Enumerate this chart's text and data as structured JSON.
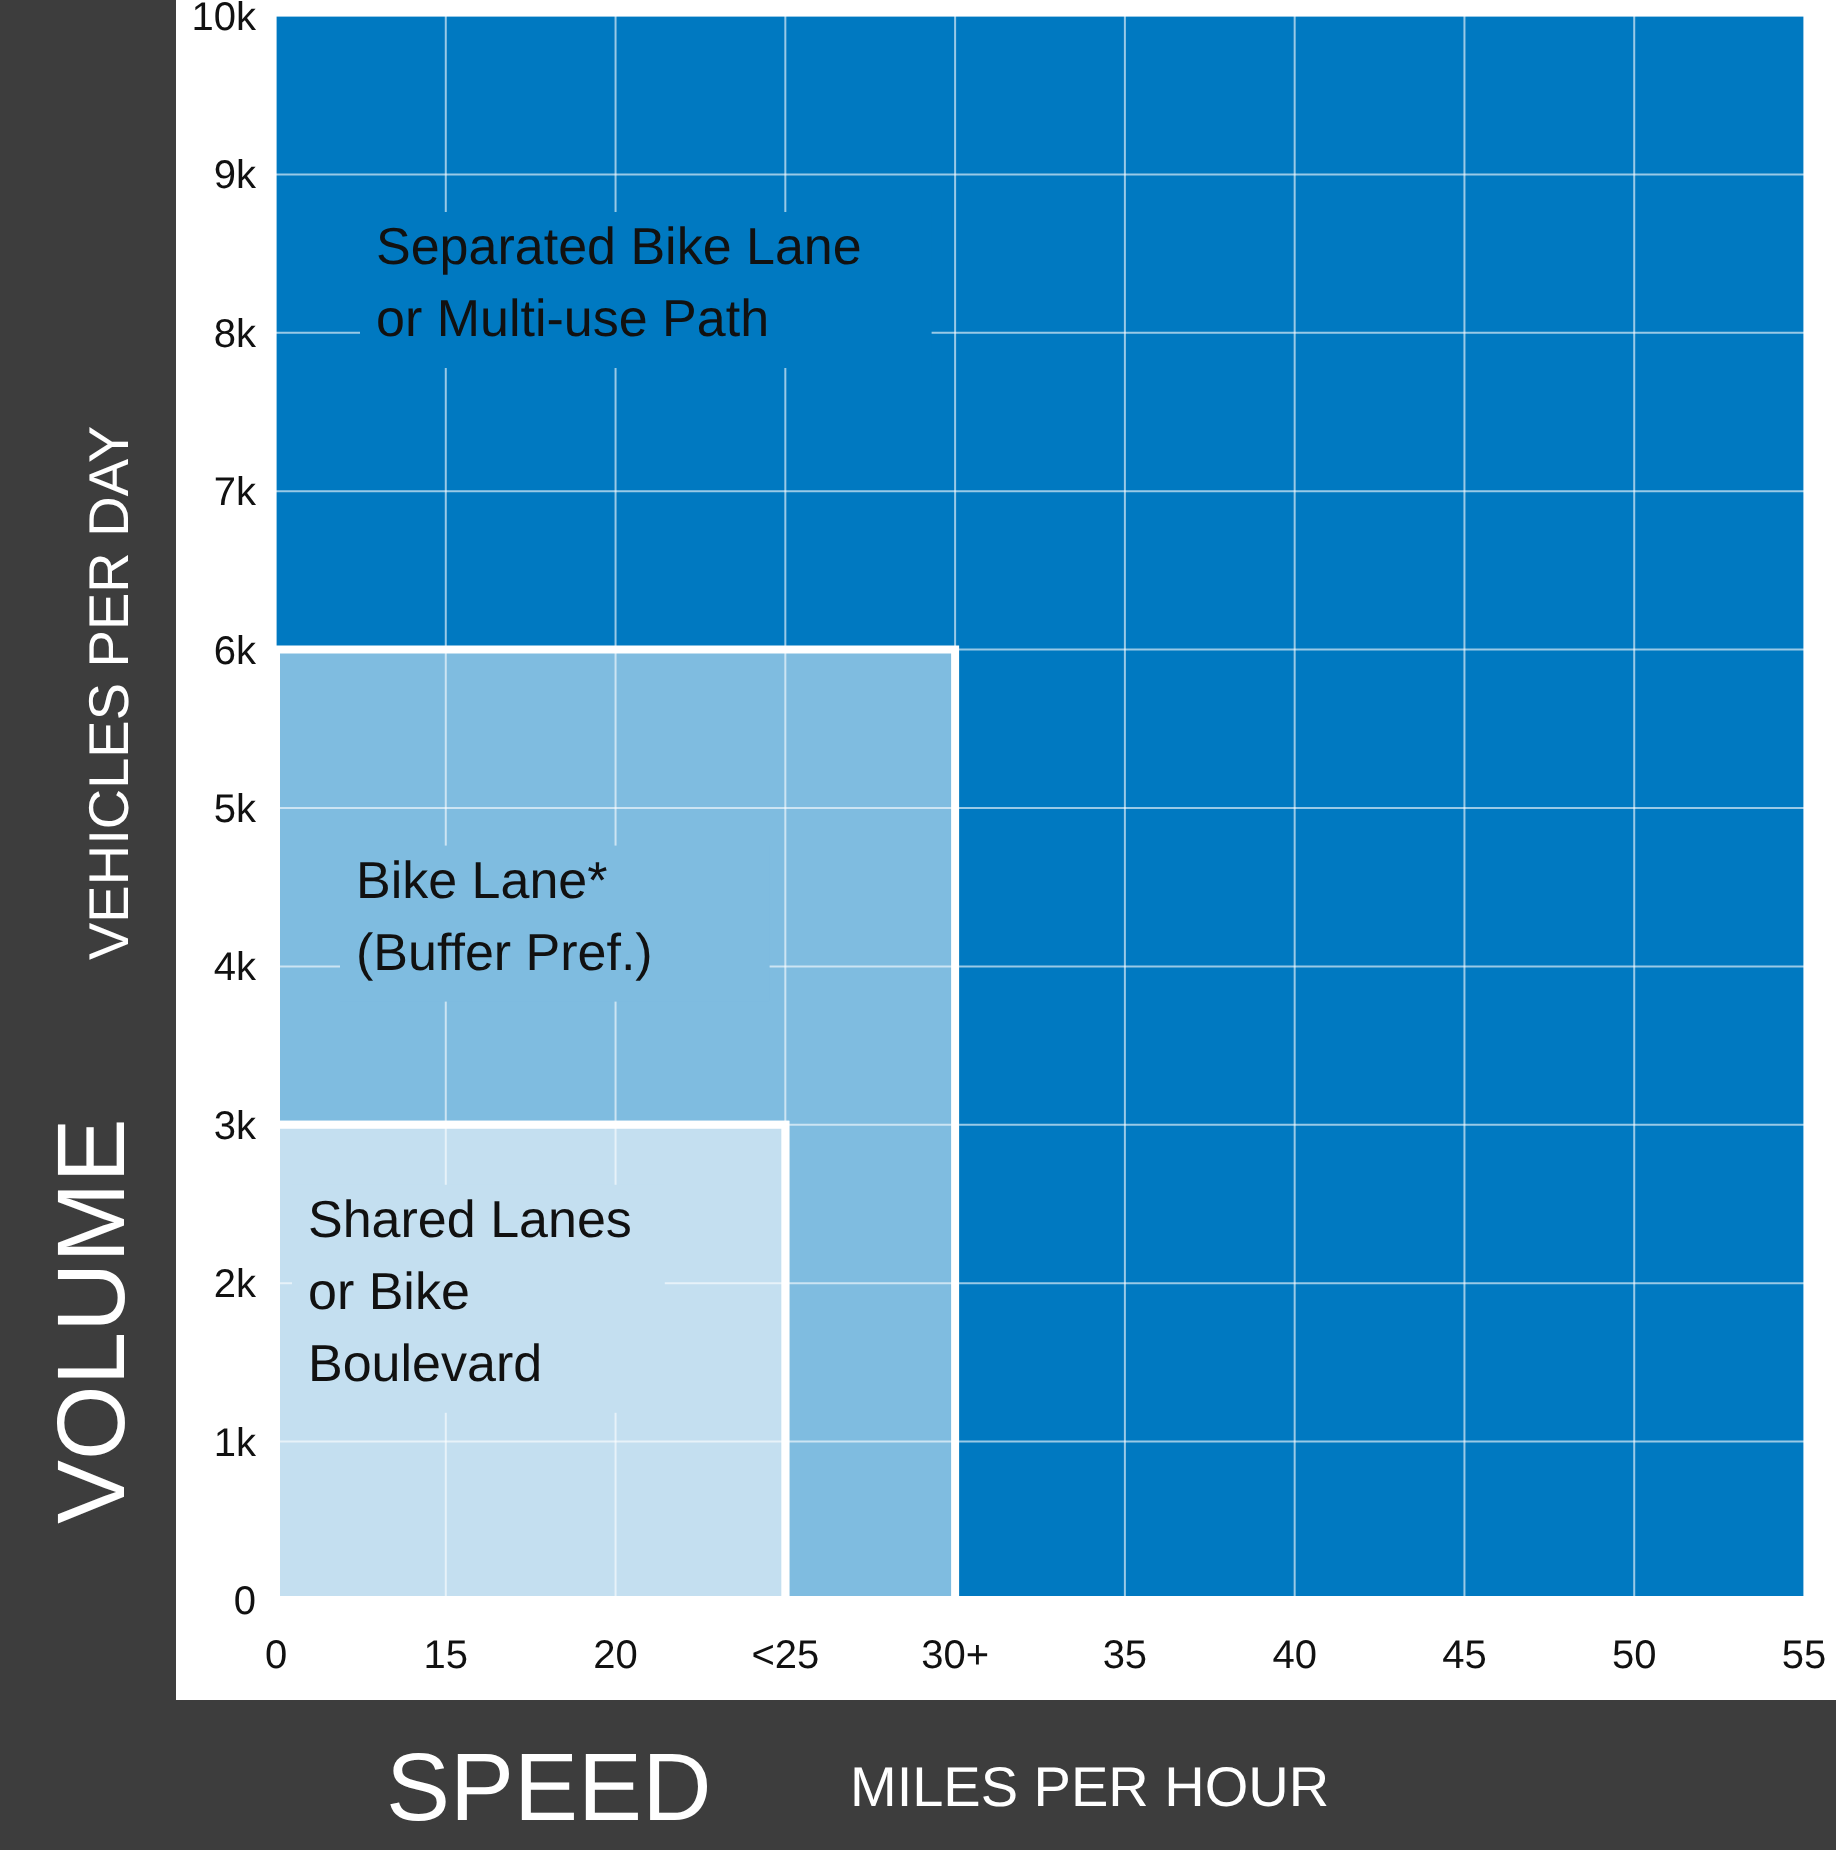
{
  "chart_data": {
    "type": "area",
    "stacked": true,
    "xlabel": "SPEED",
    "ylabel": "VOLUME",
    "annotations": [
      "MILES PER HOUR",
      "VEHICLES PER DAY"
    ],
    "categories": [
      "0",
      "15",
      "20",
      "<25",
      "30+",
      "35",
      "40",
      "45",
      "50",
      "55"
    ],
    "series": [
      {
        "name": "Shared Lanes\nor Bike\nBoulevard",
        "color": "#c4dff0",
        "values": [
          3000,
          3000,
          3000,
          3000,
          0,
          0,
          0,
          0,
          0,
          0
        ]
      },
      {
        "name": "Bike Lane*\n(Buffer Pref.)",
        "color": "#7fbce0",
        "values": [
          3000,
          3000,
          3000,
          3000,
          6000,
          0,
          0,
          0,
          0,
          0
        ]
      },
      {
        "name": "Separated Bike Lane\nor Multi-use Path",
        "color": "#0079c1",
        "values": [
          4000,
          4000,
          4000,
          4000,
          4000,
          10000,
          10000,
          10000,
          10000,
          10000
        ]
      }
    ],
    "ylim": [
      0,
      10000
    ],
    "yticks": [
      0,
      {
        "value": 1000,
        "label": "1k"
      },
      {
        "value": 2000,
        "label": "2k"
      },
      {
        "value": 3000,
        "label": "3k"
      },
      {
        "value": 4000,
        "label": "4k"
      },
      {
        "value": 5000,
        "label": "5k"
      },
      {
        "value": 6000,
        "label": "6k"
      },
      {
        "value": 7000,
        "label": "7k"
      },
      {
        "value": 8000,
        "label": "8k"
      },
      {
        "value": 9000,
        "label": "9k"
      },
      {
        "value": 10000,
        "label": "10k"
      }
    ],
    "grid": true
  }
}
